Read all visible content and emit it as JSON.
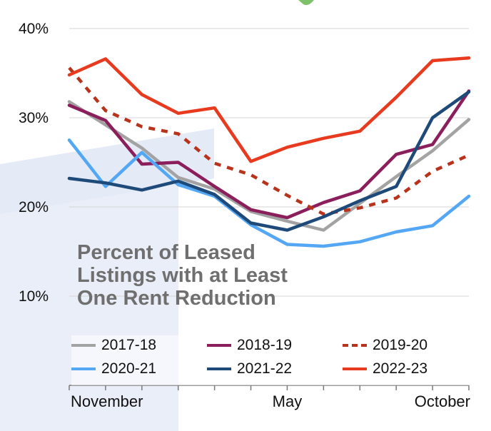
{
  "chart_data": {
    "type": "line",
    "title_lines": [
      "Percent of Leased",
      "Listings with at Least",
      "One Rent Reduction"
    ],
    "x_labels": [
      "November",
      "",
      "",
      "",
      "",
      "",
      "May",
      "",
      "",
      "",
      "",
      "October"
    ],
    "x_tick_labels": [
      "November",
      "May",
      "October"
    ],
    "y_ticks": [
      10,
      20,
      30,
      40
    ],
    "y_tick_labels": [
      "10%",
      "20%",
      "30%",
      "40%"
    ],
    "ylim": [
      0,
      40
    ],
    "grid": true,
    "legend_position": "bottom",
    "series": [
      {
        "name": "2017-18",
        "color": "#a3a3a3",
        "dash": "solid",
        "values": [
          31.8,
          29.2,
          26.6,
          23.3,
          22.0,
          19.5,
          18.4,
          17.4,
          20.4,
          23.4,
          26.3,
          29.8
        ]
      },
      {
        "name": "2018-19",
        "color": "#8b1f5c",
        "dash": "solid",
        "values": [
          31.4,
          29.7,
          24.8,
          25.0,
          22.3,
          19.7,
          18.8,
          20.5,
          21.8,
          25.9,
          27.0,
          33.0
        ]
      },
      {
        "name": "2019-20",
        "color": "#b8331c",
        "dash": "dashed",
        "values": [
          35.6,
          30.8,
          29.0,
          28.2,
          24.9,
          23.6,
          21.3,
          19.2,
          19.9,
          21.0,
          24.0,
          25.8
        ]
      },
      {
        "name": "2020-21",
        "color": "#54a7f5",
        "dash": "solid",
        "values": [
          27.5,
          22.3,
          26.1,
          22.5,
          21.2,
          18.0,
          15.8,
          15.6,
          16.1,
          17.2,
          17.9,
          21.2
        ]
      },
      {
        "name": "2021-22",
        "color": "#1e4a7a",
        "dash": "solid",
        "values": [
          23.2,
          22.7,
          21.9,
          22.9,
          21.4,
          18.2,
          17.4,
          18.9,
          20.7,
          22.3,
          30.0,
          32.9
        ]
      },
      {
        "name": "2022-23",
        "color": "#e83a1e",
        "dash": "solid",
        "values": [
          34.8,
          36.6,
          32.6,
          30.5,
          31.1,
          25.1,
          26.7,
          27.7,
          28.5,
          32.3,
          36.4,
          36.7
        ]
      }
    ]
  }
}
